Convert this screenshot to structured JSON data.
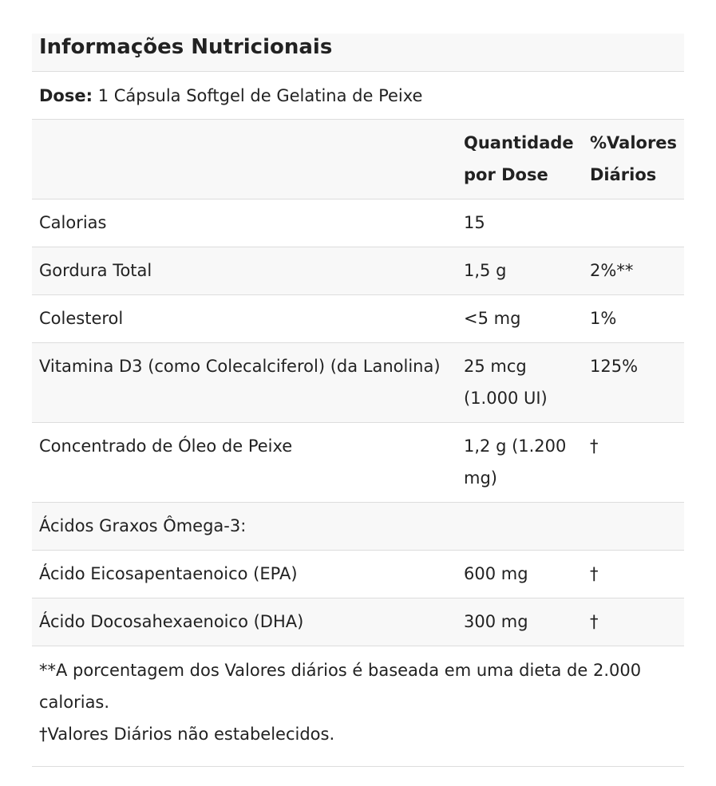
{
  "title": "Informações Nutricionais",
  "dose": {
    "label": "Dose:",
    "value": "1 Cápsula Softgel de Gelatina de Peixe"
  },
  "table": {
    "header": {
      "amount": "Quantidade por Dose",
      "daily_value": "%Valores Diários"
    },
    "rows": [
      [
        "Calorias",
        "15"
      ],
      [
        "Gordura Total",
        "1,5 g",
        "2%**"
      ],
      [
        "Colesterol",
        "<5 mg",
        "1%"
      ],
      [
        "Vitamina D3 (como Colecalciferol) (da Lanolina)",
        "25 mcg (1.000 UI)",
        "125%"
      ],
      [
        "Concentrado de Óleo de Peixe",
        "1,2 g (1.200 mg)",
        "†"
      ],
      [
        "Ácidos Graxos Ômega-3:"
      ],
      [
        "Ácido Eicosapentaenoico (EPA)",
        "600 mg",
        "†"
      ],
      [
        "Ácido Docosahexaenoico (DHA)",
        "300 mg",
        "†"
      ]
    ]
  },
  "footnotes": [
    "**A porcentagem dos Valores diários é baseada em uma dieta de 2.000 calorias.",
    "†Valores Diários não estabelecidos."
  ]
}
